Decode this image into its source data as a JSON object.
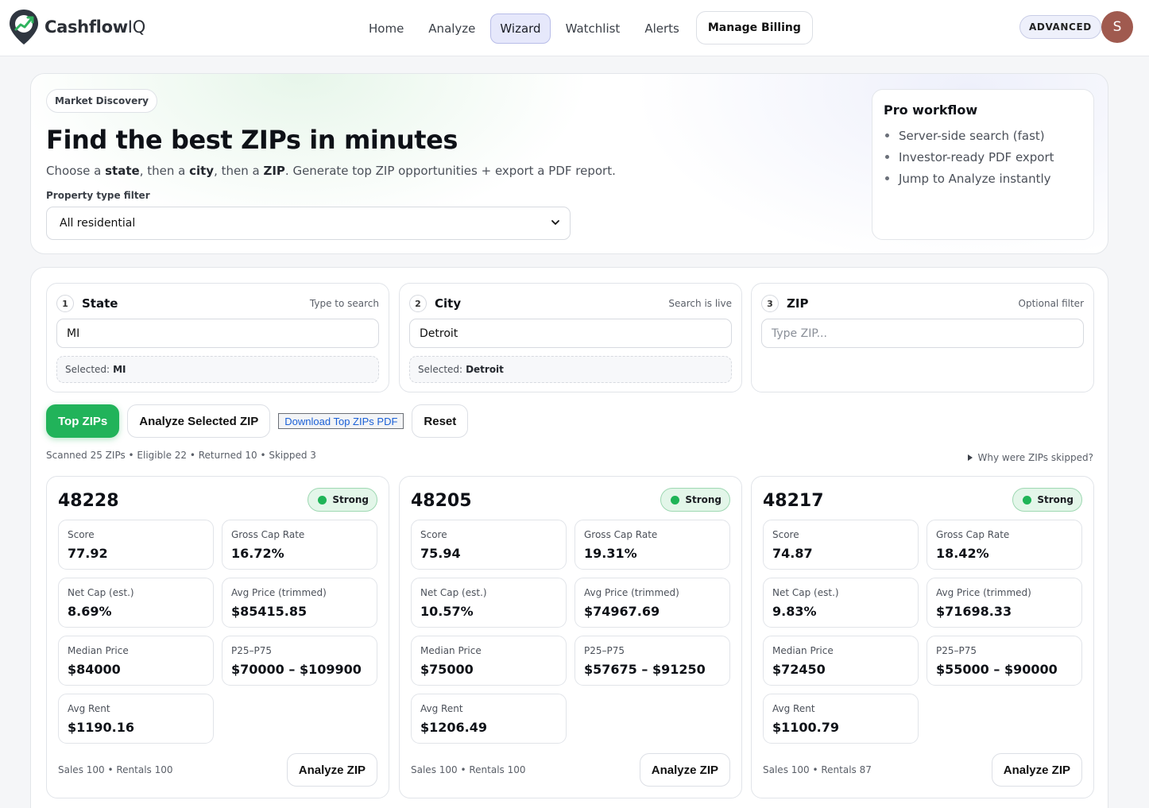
{
  "brand": {
    "name_main": "Cashflow",
    "name_suffix": "IQ"
  },
  "nav": {
    "items": [
      {
        "label": "Home",
        "active": false
      },
      {
        "label": "Analyze",
        "active": false
      },
      {
        "label": "Wizard",
        "active": true
      },
      {
        "label": "Watchlist",
        "active": false
      },
      {
        "label": "Alerts",
        "active": false
      }
    ],
    "billing_label": "Manage Billing",
    "plan_badge": "ADVANCED",
    "avatar_initial": "S"
  },
  "hero": {
    "pill": "Market Discovery",
    "title": "Find the best ZIPs in minutes",
    "subtitle": {
      "p1": "Choose a ",
      "state": "state",
      "p2": ", then a ",
      "city": "city",
      "p3": ", then a ",
      "zip": "ZIP",
      "p4": ". Generate top ZIP opportunities + export a PDF report."
    },
    "filter_label": "Property type filter",
    "filter_value": "All residential",
    "pro": {
      "title": "Pro workflow",
      "items": [
        "Server-side search (fast)",
        "Investor-ready PDF export",
        "Jump to Analyze instantly"
      ]
    }
  },
  "steps": [
    {
      "num": "1",
      "title": "State",
      "hint": "Type to search",
      "value": "MI",
      "placeholder": "",
      "selected_label": "Selected:",
      "selected_value": "MI"
    },
    {
      "num": "2",
      "title": "City",
      "hint": "Search is live",
      "value": "Detroit",
      "placeholder": "",
      "selected_label": "Selected:",
      "selected_value": "Detroit"
    },
    {
      "num": "3",
      "title": "ZIP",
      "hint": "Optional filter",
      "value": "",
      "placeholder": "Type ZIP..."
    }
  ],
  "actions": {
    "top_zips": "Top ZIPs",
    "analyze_selected": "Analyze Selected ZIP",
    "download_pdf": "Download Top ZIPs PDF",
    "reset": "Reset"
  },
  "scan_stats": "Scanned 25 ZIPs • Eligible 22 • Returned 10 • Skipped 3",
  "skipped_link": "Why were ZIPs skipped?",
  "metric_labels": {
    "score": "Score",
    "gross_cap": "Gross Cap Rate",
    "net_cap": "Net Cap (est.)",
    "avg_price": "Avg Price (trimmed)",
    "median_price": "Median Price",
    "p25_p75": "P25–P75",
    "avg_rent": "Avg Rent"
  },
  "zip_cards": [
    {
      "zip": "48228",
      "badge": "Strong",
      "score": "77.92",
      "gross_cap": "16.72%",
      "net_cap": "8.69%",
      "avg_price": "$85415.85",
      "median_price": "$84000",
      "p25_p75": "$70000 – $109900",
      "avg_rent": "$1190.16",
      "footer": "Sales 100 • Rentals 100",
      "button": "Analyze ZIP"
    },
    {
      "zip": "48205",
      "badge": "Strong",
      "score": "75.94",
      "gross_cap": "19.31%",
      "net_cap": "10.57%",
      "avg_price": "$74967.69",
      "median_price": "$75000",
      "p25_p75": "$57675 – $91250",
      "avg_rent": "$1206.49",
      "footer": "Sales 100 • Rentals 100",
      "button": "Analyze ZIP"
    },
    {
      "zip": "48217",
      "badge": "Strong",
      "score": "74.87",
      "gross_cap": "18.42%",
      "net_cap": "9.83%",
      "avg_price": "$71698.33",
      "median_price": "$72450",
      "p25_p75": "$55000 – $90000",
      "avg_rent": "$1100.79",
      "footer": "Sales 100 • Rentals 87",
      "button": "Analyze ZIP"
    }
  ],
  "icons": {
    "logo": "pin-chart-logo-icon",
    "select": "chevron-down-icon",
    "badge": "status-dot-icon",
    "details": "triangle-right-icon"
  },
  "colors": {
    "accent_green": "#21b35a",
    "nav_active_bg": "#e6e8fb",
    "link_blue": "#1a5fd6",
    "avatar": "#a05a4f"
  }
}
